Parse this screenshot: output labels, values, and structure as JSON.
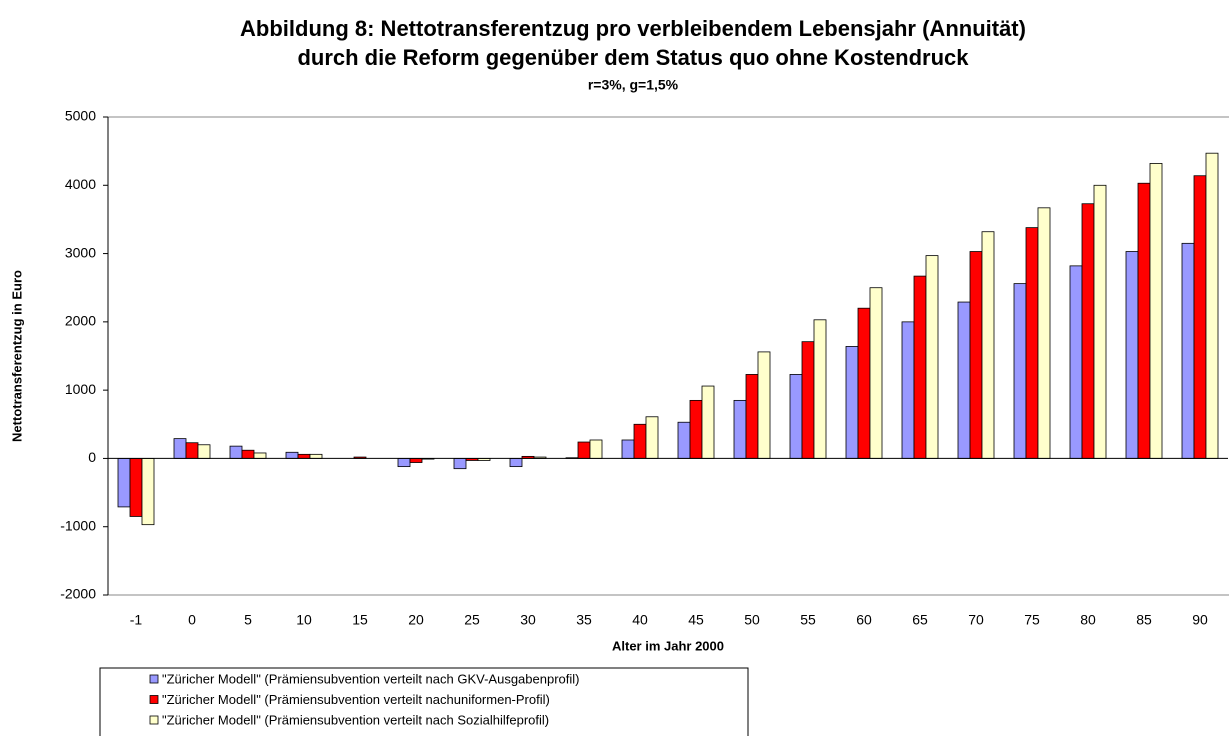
{
  "chart_data": {
    "type": "bar",
    "title": [
      "Abbildung 8: Nettotransferentzug pro verbleibendem Lebensjahr (Annuität)",
      "durch die Reform gegenüber dem Status quo ohne Kostendruck"
    ],
    "subtitle": "r=3%, g=1,5%",
    "x_label": "Alter im Jahr 2000",
    "y_label": "Nettotransferentzug in Euro",
    "categories": [
      "-1",
      "0",
      "5",
      "10",
      "15",
      "20",
      "25",
      "30",
      "35",
      "40",
      "45",
      "50",
      "55",
      "60",
      "65",
      "70",
      "75",
      "80",
      "85",
      "90"
    ],
    "series": [
      {
        "name": "\"Züricher Modell\" (Prämiensubvention verteilt nach GKV-Ausgabenprofil)",
        "color": "#9999ff",
        "values": [
          -710,
          290,
          180,
          90,
          0,
          -120,
          -150,
          -120,
          10,
          270,
          530,
          850,
          1230,
          1640,
          2000,
          2290,
          2560,
          2820,
          3030,
          3150
        ]
      },
      {
        "name": "\"Züricher Modell\" (Prämiensubvention verteilt nachuniformen-Profil)",
        "color": "#ff0000",
        "values": [
          -850,
          230,
          120,
          60,
          20,
          -60,
          -30,
          30,
          240,
          500,
          850,
          1230,
          1710,
          2200,
          2670,
          3030,
          3380,
          3730,
          4030,
          4140
        ]
      },
      {
        "name": "\"Züricher Modell\" (Prämiensubvention verteilt nach Sozialhilfeprofil)",
        "color": "#ffffcc",
        "values": [
          -970,
          200,
          80,
          60,
          0,
          -10,
          -30,
          20,
          270,
          610,
          1060,
          1560,
          2030,
          2500,
          2970,
          3320,
          3670,
          4000,
          4320,
          4470
        ]
      }
    ],
    "ylim": [
      -2000,
      5000
    ],
    "yticks": [
      -2000,
      -1000,
      0,
      1000,
      2000,
      3000,
      4000,
      5000
    ],
    "grid": false
  }
}
